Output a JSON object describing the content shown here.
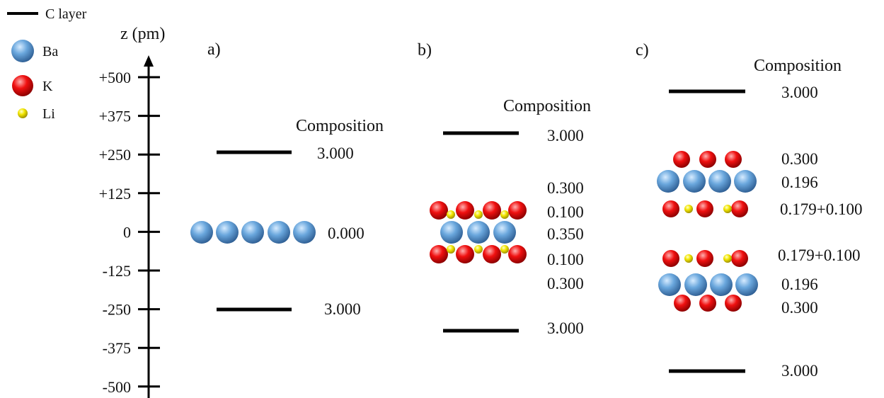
{
  "legend": {
    "c_layer": "C layer",
    "ba": "Ba",
    "k": "K",
    "li": "Li"
  },
  "axis": {
    "title": "z (pm)",
    "ticks": [
      "+500",
      "+375",
      "+250",
      "+125",
      "0",
      "-125",
      "-250",
      "-375",
      "-500"
    ]
  },
  "panels": {
    "a": {
      "label": "a)",
      "composition_header": "Composition",
      "values": [
        "3.000",
        "0.000",
        "3.000"
      ]
    },
    "b": {
      "label": "b)",
      "composition_header": "Composition",
      "values": [
        "3.000",
        "0.300",
        "0.100",
        "0.350",
        "0.100",
        "0.300",
        "3.000"
      ]
    },
    "c": {
      "label": "c)",
      "composition_header": "Composition",
      "values": [
        "3.000",
        "0.300",
        "0.196",
        "0.179+0.100",
        "0.179+0.100",
        "0.196",
        "0.300",
        "3.000"
      ]
    }
  },
  "colors": {
    "ba": "#5b9bd5",
    "k": "#e00000",
    "li": "#f0e000",
    "c_layer": "#000000"
  }
}
